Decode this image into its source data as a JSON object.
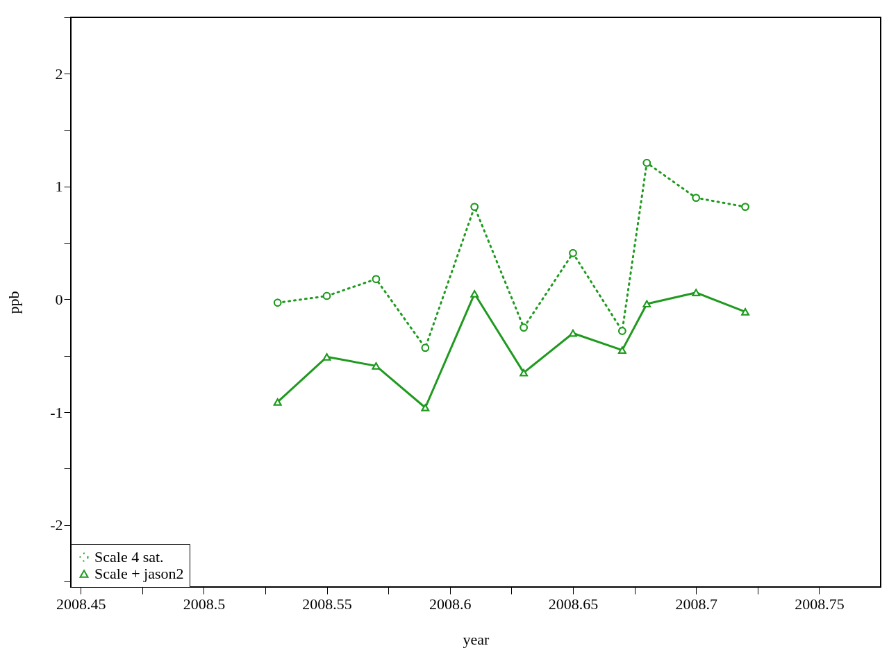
{
  "chart_data": {
    "type": "line",
    "xlabel": "year",
    "ylabel": "ppb",
    "x": [
      2008.53,
      2008.55,
      2008.57,
      2008.59,
      2008.61,
      2008.63,
      2008.65,
      2008.67,
      2008.68,
      2008.7,
      2008.72
    ],
    "series": [
      {
        "name": "Scale 4 sat.",
        "color": "#1f9a1f",
        "marker": "circle",
        "line_style": "dotted",
        "values": [
          -0.03,
          0.03,
          0.18,
          -0.43,
          0.82,
          -0.25,
          0.41,
          -0.28,
          1.21,
          0.9,
          0.82
        ]
      },
      {
        "name": "Scale + jason2",
        "color": "#1f9a1f",
        "marker": "triangle",
        "line_style": "solid",
        "values": [
          -0.91,
          -0.51,
          -0.59,
          -0.96,
          0.05,
          -0.65,
          -0.3,
          -0.45,
          -0.04,
          0.06,
          -0.11
        ]
      }
    ],
    "xlim": [
      2008.446,
      2008.775
    ],
    "ylim": [
      -2.55,
      2.5
    ],
    "xticks": [
      2008.45,
      {
        "value": 2008.475,
        "label": null
      },
      2008.5,
      {
        "value": 2008.525,
        "label": null
      },
      2008.55,
      {
        "value": 2008.575,
        "label": null
      },
      2008.6,
      {
        "value": 2008.625,
        "label": null
      },
      2008.65,
      {
        "value": 2008.675,
        "label": null
      },
      2008.7,
      {
        "value": 2008.725,
        "label": null
      },
      2008.75
    ],
    "yticks": [
      {
        "value": -2.5,
        "label": null
      },
      -2,
      {
        "value": -1.5,
        "label": null
      },
      -1,
      {
        "value": -0.5,
        "label": null
      },
      0,
      {
        "value": 0.5,
        "label": null
      },
      1,
      {
        "value": 1.5,
        "label": null
      },
      2,
      {
        "value": 2.5,
        "label": null
      }
    ],
    "grid": false,
    "legend": "bottom left"
  }
}
